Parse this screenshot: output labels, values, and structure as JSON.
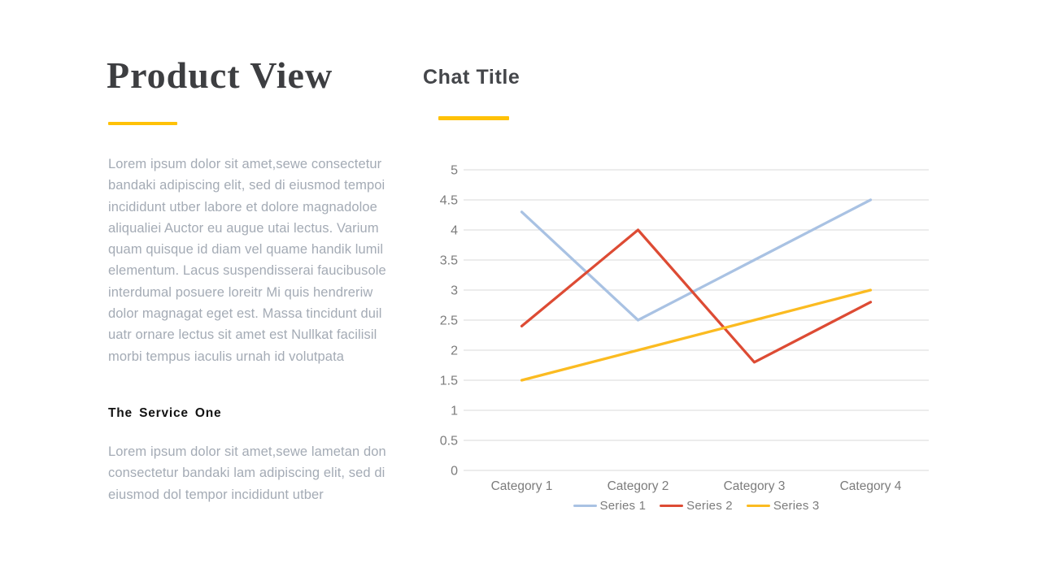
{
  "slide": {
    "title": "Product View",
    "accent_color": "#ffc107",
    "paragraph1_lines": [
      "Lorem ipsum dolor sit amet,sewe consectetur",
      "bandaki adipiscing elit, sed di eiusmod tempoi",
      "incididunt utber labore et dolore magnadoloe",
      "aliqualiei Auctor eu augue utai lectus. Varium",
      "quam quisque id diam vel quame handik lumil",
      "elementum. Lacus suspendisserai faucibusole",
      "interdumal posuere loreitr Mi quis hendreriw",
      "dolor magnagat eget est. Massa tincidunt duil",
      "uatr ornare lectus sit amet est Nullkat facilisil",
      "morbi tempus iaculis urnah id volutpata"
    ],
    "subheading": "The Service One",
    "paragraph2_lines": [
      "Lorem ipsum dolor sit amet,sewe lametan don",
      "consectetur bandaki lam adipiscing elit, sed di",
      "eiusmod dol tempor incididunt utber"
    ]
  },
  "chart": {
    "title": "Chat Title"
  },
  "chart_data": {
    "type": "line",
    "title": "Chat Title",
    "categories": [
      "Category 1",
      "Category 2",
      "Category 3",
      "Category 4"
    ],
    "series": [
      {
        "name": "Series 1",
        "values": [
          4.3,
          2.5,
          3.5,
          4.5
        ],
        "color": "#a9c2e3"
      },
      {
        "name": "Series 2",
        "values": [
          2.4,
          4.0,
          1.8,
          2.8
        ],
        "color": "#dd4b34"
      },
      {
        "name": "Series 3",
        "values": [
          1.5,
          2.0,
          2.5,
          3.0
        ],
        "color": "#fbbb21"
      }
    ],
    "ylim": [
      0,
      5
    ],
    "ytick_step": 0.5,
    "grid": true,
    "gridline_color": "#d9d9d9",
    "axis_label_color": "#7c7c7c",
    "legend_position": "bottom"
  }
}
